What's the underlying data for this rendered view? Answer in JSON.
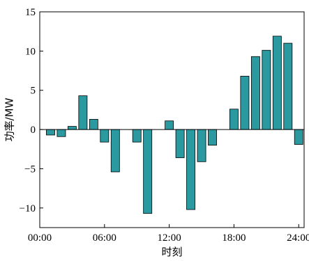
{
  "chart_data": {
    "type": "bar",
    "xlabel": "时刻",
    "ylabel": "功率/MW",
    "ylim": [
      -12.5,
      15
    ],
    "xlim": [
      0,
      24.5
    ],
    "yticks": [
      15,
      10,
      5,
      0,
      -5,
      -10
    ],
    "ytick_labels": [
      "15",
      "10",
      "5",
      "0",
      "−5",
      "−10"
    ],
    "xticks": [
      0,
      6,
      12,
      18,
      24
    ],
    "xtick_labels": [
      "00:00",
      "06:00",
      "12:00",
      "18:00",
      "24:00"
    ],
    "bar_color": "#2a9aa0",
    "x": [
      1,
      2,
      3,
      4,
      5,
      6,
      7,
      8,
      9,
      10,
      11,
      12,
      13,
      14,
      15,
      16,
      17,
      18,
      19,
      20,
      21,
      22,
      23,
      24
    ],
    "values": [
      -0.7,
      -0.9,
      0.4,
      4.3,
      1.3,
      -1.6,
      -5.4,
      0,
      -1.6,
      -10.7,
      0,
      1.1,
      -3.6,
      -10.2,
      -4.1,
      -2.0,
      0,
      2.6,
      6.8,
      9.3,
      10.1,
      11.9,
      11.0,
      -1.9
    ]
  }
}
